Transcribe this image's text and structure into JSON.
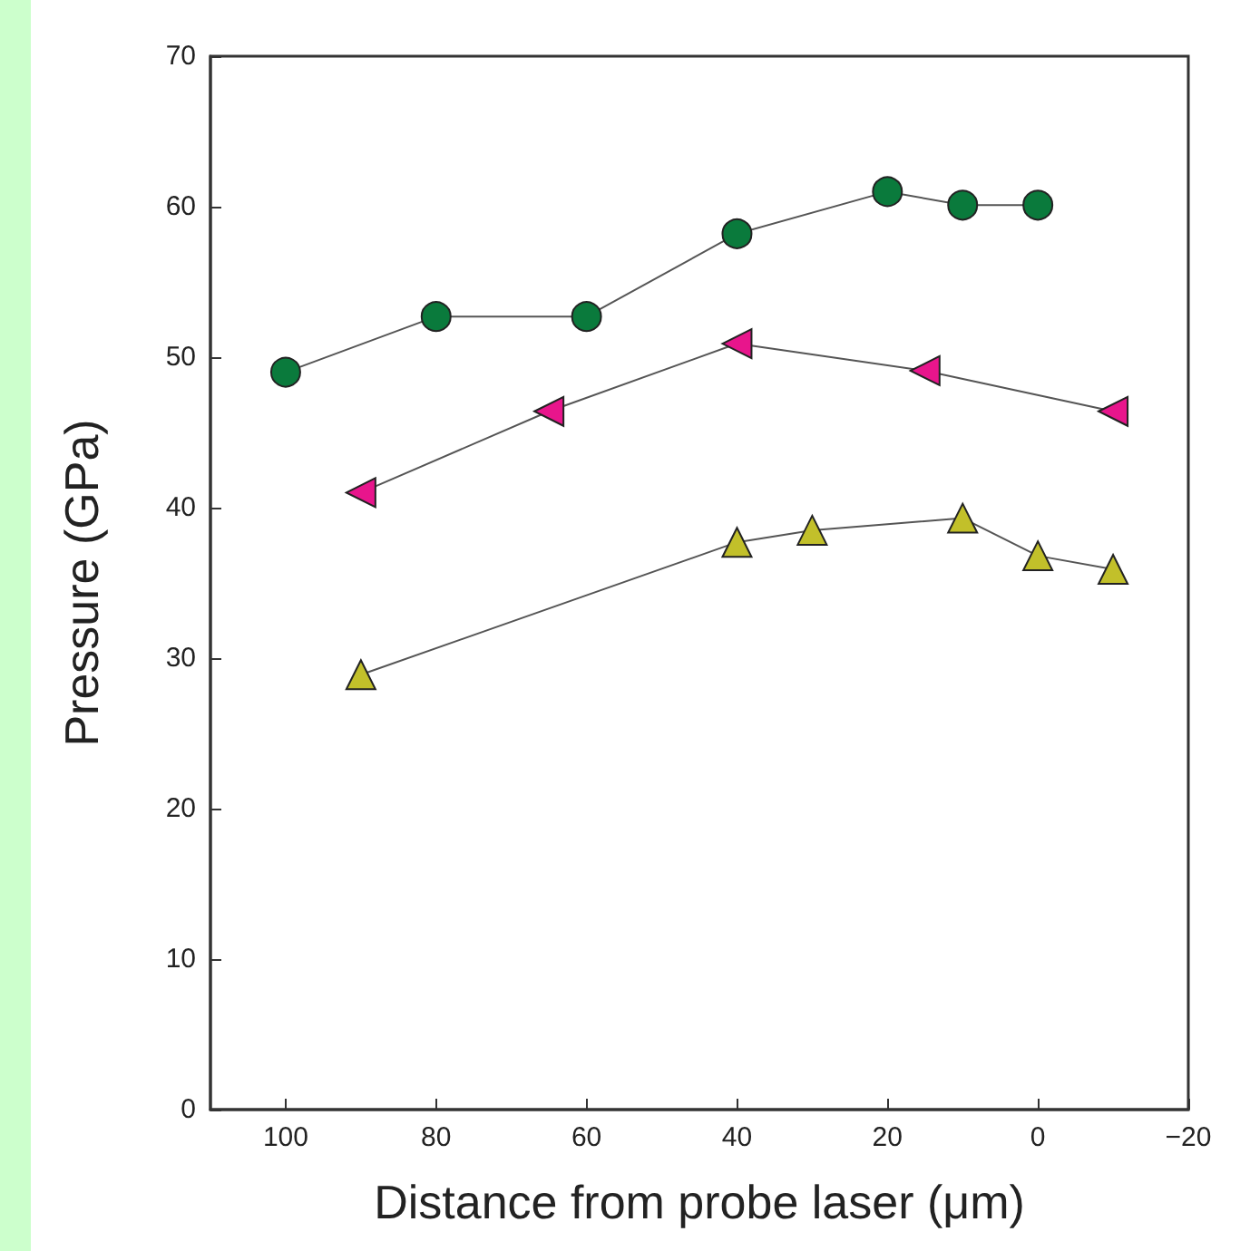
{
  "chart_data": {
    "type": "line",
    "xlabel": "Distance from probe laser (μm)",
    "ylabel": "Pressure (GPa)",
    "xlim": [
      110,
      -20
    ],
    "xticks": [
      100,
      80,
      60,
      40,
      20,
      0,
      {
        "value": -20,
        "label": "−20"
      }
    ],
    "ylim": [
      0,
      70
    ],
    "yticks": [
      0,
      10,
      20,
      30,
      40,
      50,
      60,
      70
    ],
    "series": [
      {
        "color": "#0a7a3c",
        "marker": "circle",
        "x": [
          100,
          80,
          60,
          40,
          20,
          10,
          0
        ],
        "values": [
          49,
          52.7,
          52.7,
          58.2,
          61,
          60.1,
          60.1
        ]
      },
      {
        "color": "#e8158c",
        "marker": "triangle-left",
        "x": [
          90,
          65,
          40,
          15,
          -10
        ],
        "values": [
          41,
          46.4,
          50.9,
          49.1,
          46.4
        ]
      },
      {
        "color": "#c2c02a",
        "marker": "triangle",
        "x": [
          90,
          40,
          30,
          10,
          0,
          -10
        ],
        "values": [
          28.9,
          37.7,
          38.5,
          39.3,
          36.8,
          35.9
        ]
      }
    ]
  }
}
